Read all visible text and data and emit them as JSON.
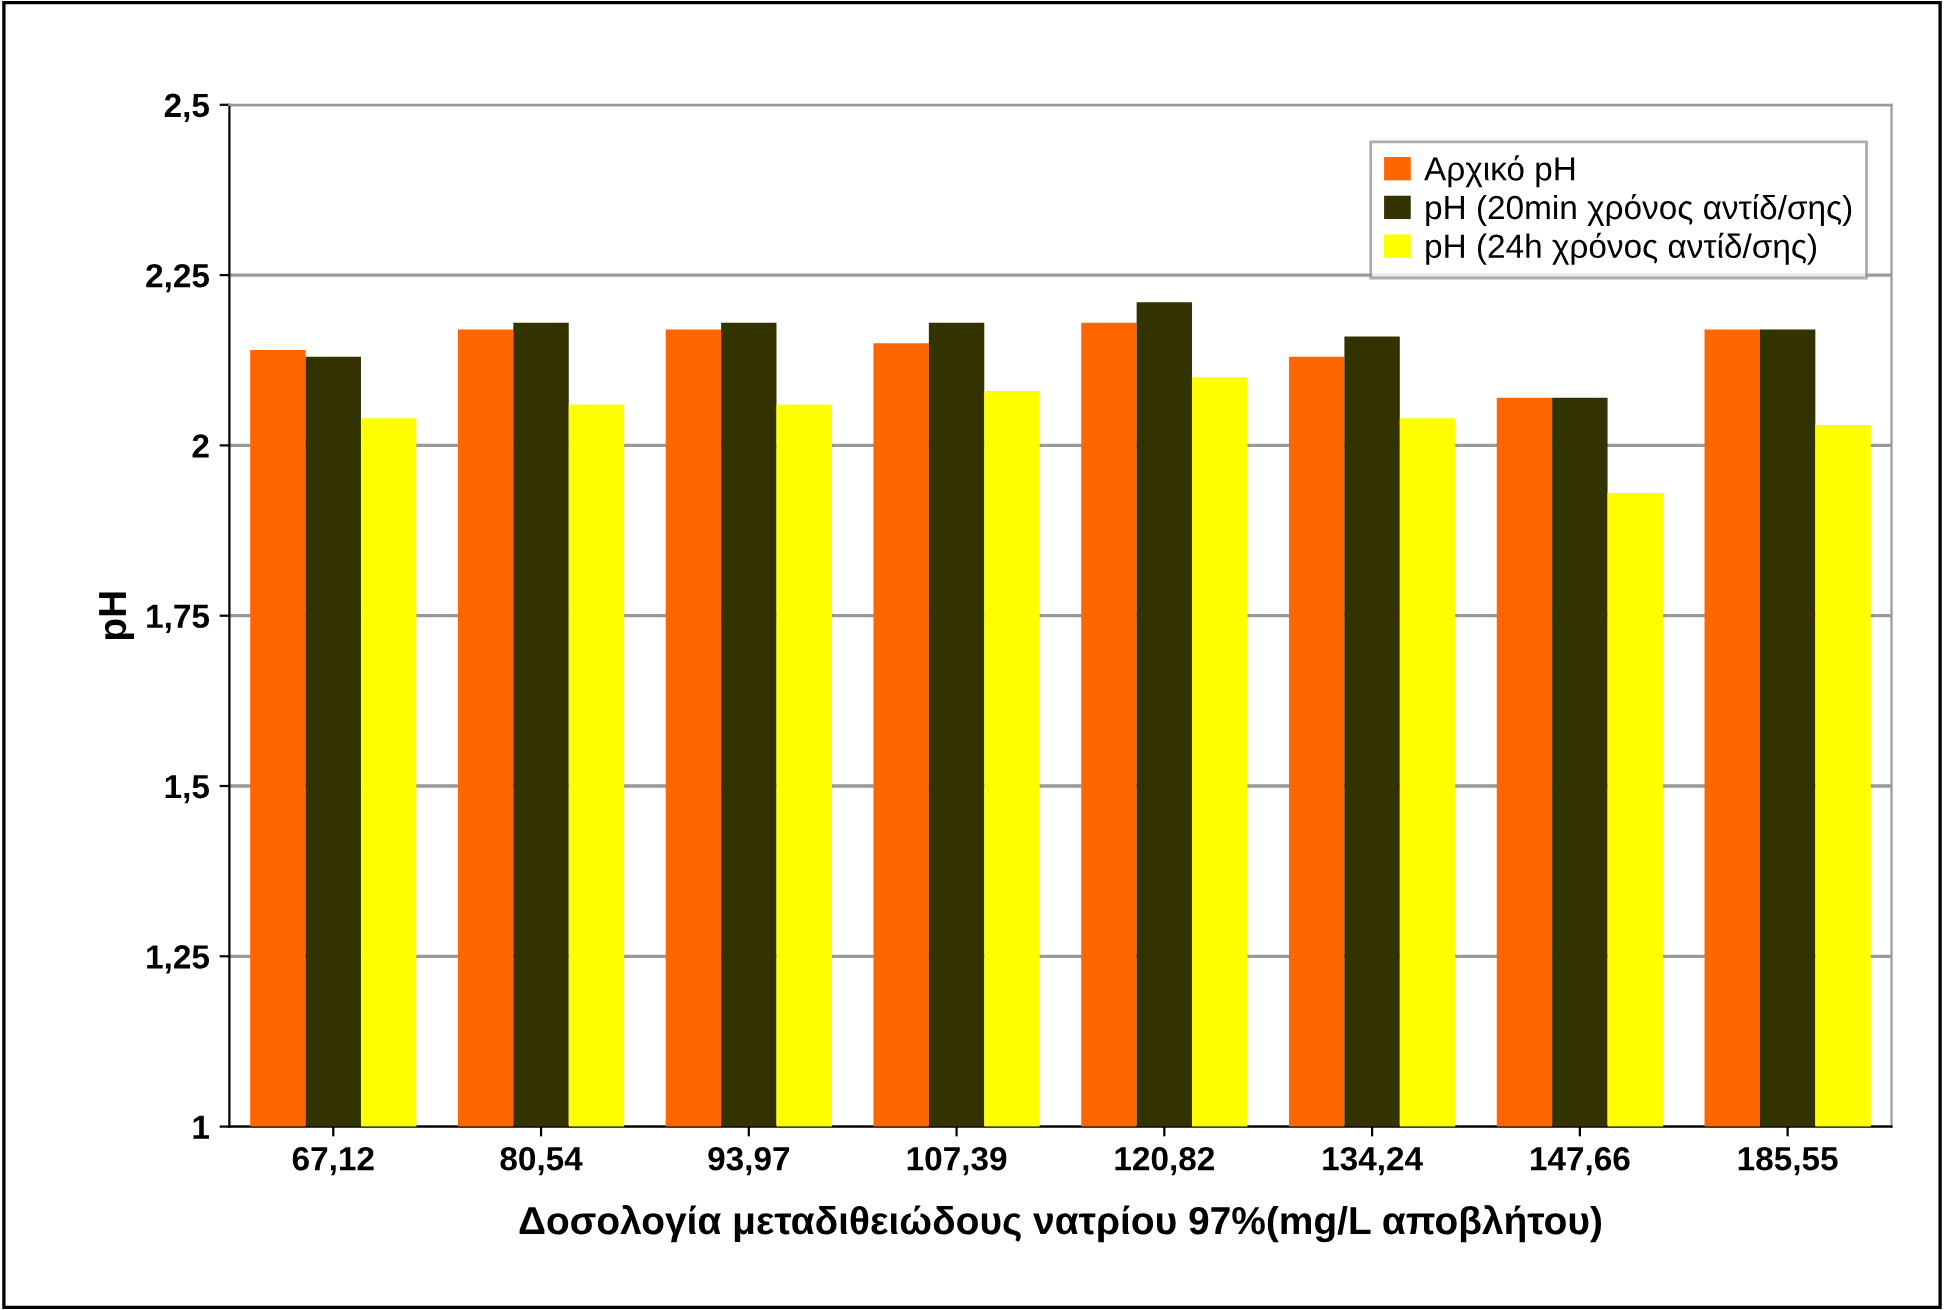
{
  "chart_data": {
    "type": "bar",
    "xlabel": "Δοσολογία μεταδιθειώδους νατρίου 97%(mg/L αποβλήτου)",
    "ylabel": "pH",
    "categories": [
      "67,12",
      "80,54",
      "93,97",
      "107,39",
      "120,82",
      "134,24",
      "147,66",
      "185,55"
    ],
    "series": [
      {
        "name": "Αρχικό pH",
        "color": "#ff6600",
        "values": [
          2.14,
          2.17,
          2.17,
          2.15,
          2.18,
          2.13,
          2.07,
          2.17
        ]
      },
      {
        "name": "pH (20min χρόνος αντίδ/σης)",
        "color": "#333300",
        "values": [
          2.13,
          2.18,
          2.18,
          2.18,
          2.21,
          2.16,
          2.07,
          2.17
        ]
      },
      {
        "name": "pH (24h χρόνος αντίδ/σης)",
        "color": "#ffff00",
        "values": [
          2.04,
          2.06,
          2.06,
          2.08,
          2.1,
          2.04,
          1.93,
          2.03
        ]
      }
    ],
    "ylim": [
      1,
      2.5
    ],
    "yticks": [
      1,
      {
        "value": 1.25,
        "label": "1,25"
      },
      {
        "value": 1.5,
        "label": "1,5"
      },
      {
        "value": 1.75,
        "label": "1,75"
      },
      2,
      {
        "value": 2.25,
        "label": "2,25"
      },
      {
        "value": 2.5,
        "label": "2,5"
      }
    ],
    "grid": "y",
    "legend": "top right"
  }
}
